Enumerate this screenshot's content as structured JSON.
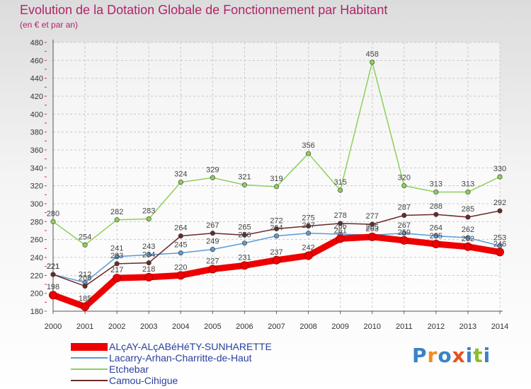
{
  "header": {
    "title": "Evolution de la Dotation Globale de Fonctionnement par Habitant",
    "subtitle": "(en € et par an)"
  },
  "logo": {
    "text": "Proxiti",
    "letters": [
      "P",
      "r",
      "o",
      "x",
      "i",
      "t",
      "i"
    ],
    "colors": [
      "#3b82c4",
      "#f28c1e",
      "#3b82c4",
      "#e8501a",
      "#3b82c4",
      "#8cbf26",
      "#3b82c4"
    ]
  },
  "chart_data": {
    "type": "line",
    "x": [
      "2000",
      "2001",
      "2002",
      "2003",
      "2004",
      "2005",
      "2006",
      "2007",
      "2008",
      "2009",
      "2010",
      "2011",
      "2012",
      "2013",
      "2014"
    ],
    "ylim": [
      180,
      480
    ],
    "yticks": [
      180,
      200,
      220,
      240,
      260,
      280,
      300,
      320,
      340,
      360,
      380,
      400,
      420,
      440,
      460,
      480
    ],
    "grid": true,
    "legend_position": "bottom",
    "series": [
      {
        "name": "ALçAY-ALçABéHéTY-SUNHARETTE",
        "color": "#ee0000",
        "values": [
          198,
          185,
          217,
          218,
          220,
          227,
          231,
          237,
          242,
          261,
          263,
          259,
          255,
          252,
          246
        ]
      },
      {
        "name": "Lacarry-Arhan-Charritte-de-Haut",
        "color": "#5b9bd5",
        "values": [
          221,
          212,
          241,
          243,
          245,
          249,
          256,
          264,
          267,
          266,
          265,
          267,
          264,
          262,
          253
        ]
      },
      {
        "name": "Etchebar",
        "color": "#8ed05a",
        "values": [
          280,
          254,
          282,
          283,
          324,
          329,
          321,
          319,
          356,
          315,
          458,
          320,
          313,
          313,
          330
        ]
      },
      {
        "name": "Camou-Cihigue",
        "color": "#6b2a2a",
        "values": [
          221,
          208,
          233,
          234,
          264,
          267,
          265,
          272,
          275,
          278,
          277,
          287,
          288,
          285,
          292
        ]
      }
    ]
  }
}
